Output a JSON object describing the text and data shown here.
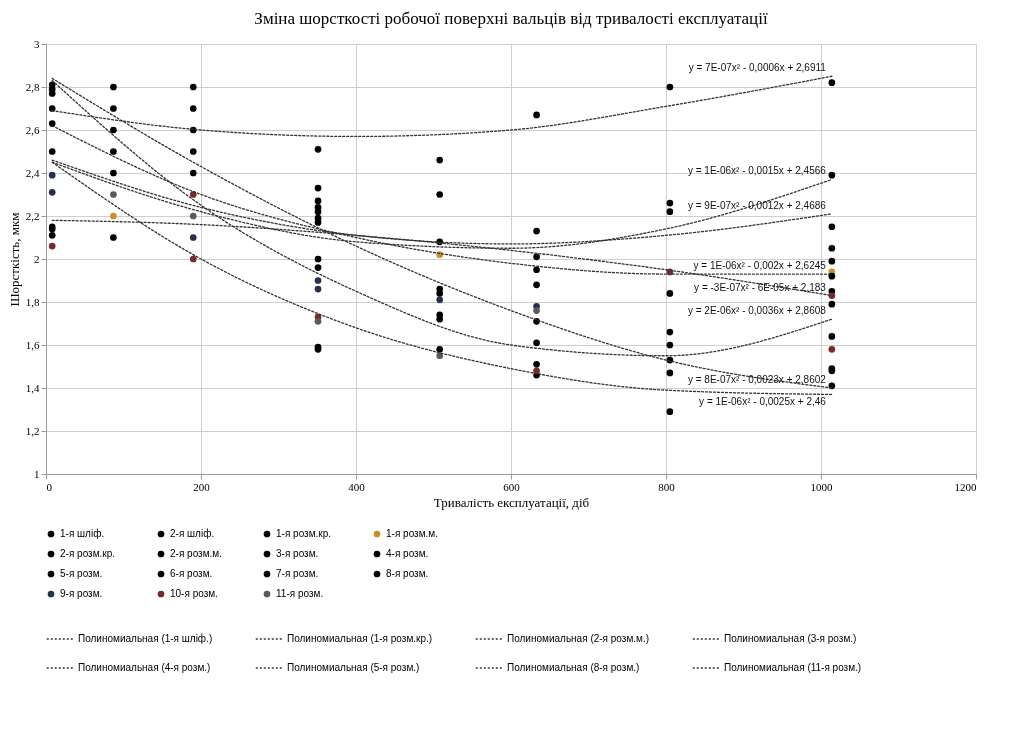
{
  "chart_data": {
    "type": "scatter",
    "title": "Зміна шорсткості робочої поверхні вальців від тривалості експлуатації",
    "xlabel": "Тривалість експлуатації, діб",
    "ylabel": "Шорсткість, мкм",
    "xlim": [
      0,
      1200
    ],
    "xticks": [
      0,
      200,
      400,
      600,
      800,
      1000,
      1200
    ],
    "ylim": [
      1,
      3
    ],
    "yticks": [
      1,
      {
        "value": 1.2,
        "label": "1,2"
      },
      {
        "value": 1.4,
        "label": "1,4"
      },
      {
        "value": 1.6,
        "label": "1,6"
      },
      {
        "value": 1.8,
        "label": "1,8"
      },
      2,
      {
        "value": 2.2,
        "label": "2,2"
      },
      {
        "value": 2.4,
        "label": "2,4"
      },
      {
        "value": 2.6,
        "label": "2,6"
      },
      {
        "value": 2.8,
        "label": "2,8"
      },
      3
    ],
    "grid": true,
    "legend": "bottom",
    "series": [
      {
        "name": "1-я шліф.",
        "marker": "circle",
        "color": "#000000",
        "x": [
          8,
          87,
          190,
          351,
          508,
          633,
          805,
          1014
        ],
        "values": [
          2.81,
          2.8,
          2.8,
          2.51,
          2.46,
          2.67,
          2.8,
          2.82
        ]
      },
      {
        "name": "2-я шліф.",
        "marker": "circle",
        "color": "#000000",
        "x": [
          8,
          87,
          190,
          351,
          508,
          633,
          805,
          1014
        ],
        "values": [
          2.79,
          2.7,
          2.7,
          2.33,
          2.3,
          2.13,
          2.26,
          2.39
        ]
      },
      {
        "name": "1-я розм.кр.",
        "marker": "circle",
        "color": "#000000",
        "x": [
          8,
          87,
          190,
          351,
          508,
          633,
          805,
          1014
        ],
        "values": [
          2.77,
          2.6,
          2.6,
          2.27,
          2.08,
          2.01,
          2.22,
          2.15
        ]
      },
      {
        "name": "1-я розм.м.",
        "marker": "circle",
        "color": "#c8902a",
        "x": [
          87,
          508,
          1014
        ],
        "values": [
          2.2,
          2.02,
          1.94
        ]
      },
      {
        "name": "2-я розм.кр.",
        "marker": "circle",
        "color": "#000000",
        "x": [
          8,
          87,
          190,
          351,
          508,
          633,
          805,
          1014
        ],
        "values": [
          2.7,
          2.5,
          2.5,
          2.24,
          1.86,
          1.95,
          1.84,
          2.05
        ]
      },
      {
        "name": "2-я розм.м.",
        "marker": "circle",
        "color": "#000000",
        "x": [
          8,
          87,
          190,
          351,
          508,
          633,
          805,
          1014
        ],
        "values": [
          2.63,
          2.4,
          2.4,
          2.22,
          1.84,
          1.88,
          1.66,
          1.99
        ]
      },
      {
        "name": "3-я розм.",
        "marker": "circle",
        "color": "#000000",
        "x": [
          8,
          351,
          633,
          805,
          1014
        ],
        "values": [
          2.5,
          2.19,
          1.71,
          1.6,
          1.92
        ]
      },
      {
        "name": "4-я розм.",
        "marker": "circle",
        "color": "#000000",
        "x": [
          8,
          87,
          351,
          633,
          805,
          1014
        ],
        "values": [
          2.15,
          2.1,
          2.17,
          1.61,
          1.53,
          1.85
        ]
      },
      {
        "name": "5-я розм.",
        "marker": "circle",
        "color": "#000000",
        "x": [
          8,
          351,
          508,
          633,
          805,
          1014
        ],
        "values": [
          2.14,
          2.0,
          1.74,
          1.51,
          1.47,
          1.79
        ]
      },
      {
        "name": "6-я розм.",
        "marker": "circle",
        "color": "#000000",
        "x": [
          8,
          351,
          508,
          633,
          805,
          1014
        ],
        "values": [
          2.11,
          1.96,
          1.72,
          1.46,
          1.29,
          1.64
        ]
      },
      {
        "name": "7-я розм.",
        "marker": "circle",
        "color": "#000000",
        "x": [
          351,
          508,
          1014
        ],
        "values": [
          1.59,
          1.58,
          1.49
        ]
      },
      {
        "name": "8-я розм.",
        "marker": "circle",
        "color": "#000000",
        "x": [
          351,
          1014,
          1014
        ],
        "values": [
          1.58,
          1.48,
          1.41
        ]
      },
      {
        "name": "9-я розм.",
        "marker": "circle",
        "color": "#26324d",
        "x": [
          8,
          8,
          190,
          351,
          351,
          508,
          633
        ],
        "values": [
          2.39,
          2.31,
          2.1,
          1.9,
          1.86,
          1.81,
          1.78
        ]
      },
      {
        "name": "10-я розм.",
        "marker": "circle",
        "color": "#7a2a2a",
        "x": [
          8,
          190,
          190,
          351,
          633,
          805,
          1014,
          1014
        ],
        "values": [
          2.06,
          2.3,
          2.0,
          1.73,
          1.48,
          1.94,
          1.58,
          1.83
        ]
      },
      {
        "name": "11-я розм.",
        "marker": "circle",
        "color": "#5a5a5a",
        "x": [
          87,
          190,
          351,
          508,
          633
        ],
        "values": [
          2.3,
          2.2,
          1.71,
          1.55,
          1.76
        ]
      },
      {
        "name": "Полиномиальная (1-я шліф.)",
        "type": "line",
        "line_style": "dotted",
        "color": "#333333",
        "x": [
          8,
          200,
          400,
          600,
          800,
          1014
        ],
        "values": [
          2.69,
          2.6,
          2.57,
          2.6,
          2.71,
          2.85
        ]
      },
      {
        "name": "Полиномиальная (1-я розм.кр.)",
        "type": "line",
        "line_style": "dotted",
        "color": "#333333",
        "x": [
          8,
          200,
          400,
          600,
          800,
          1014
        ],
        "values": [
          2.45,
          2.22,
          2.08,
          2.05,
          2.14,
          2.37
        ]
      },
      {
        "name": "Полиномиальная (2-я розм.м.)",
        "type": "line",
        "line_style": "dotted",
        "color": "#333333",
        "x": [
          8,
          200,
          400,
          600,
          800,
          1014
        ],
        "values": [
          2.46,
          2.24,
          2.11,
          2.07,
          2.11,
          2.21
        ]
      },
      {
        "name": "Полиномиальная (3-я розм.)",
        "type": "line",
        "line_style": "dotted",
        "color": "#333333",
        "x": [
          8,
          200,
          400,
          600,
          800,
          1014
        ],
        "values": [
          2.62,
          2.3,
          2.1,
          1.98,
          1.93,
          1.93
        ]
      },
      {
        "name": "Полиномиальная (4-я розм.)",
        "type": "line",
        "line_style": "dotted",
        "color": "#333333",
        "x": [
          8,
          200,
          400,
          600,
          800,
          1014
        ],
        "values": [
          2.18,
          2.16,
          2.11,
          2.04,
          1.95,
          1.83
        ]
      },
      {
        "name": "Полиномиальная (5-я розм.)",
        "type": "line",
        "line_style": "dotted",
        "color": "#333333",
        "x": [
          8,
          200,
          400,
          600,
          800,
          1014
        ],
        "values": [
          2.83,
          2.25,
          1.85,
          1.6,
          1.55,
          1.72
        ]
      },
      {
        "name": "Полиномиальная (8-я розм.)",
        "type": "line",
        "line_style": "dotted",
        "color": "#333333",
        "x": [
          8,
          200,
          400,
          600,
          800,
          1014
        ],
        "values": [
          2.84,
          2.43,
          2.06,
          1.76,
          1.53,
          1.4
        ]
      },
      {
        "name": "Полиномиальная (11-я розм.)",
        "type": "line",
        "line_style": "dotted",
        "color": "#333333",
        "x": [
          8,
          200,
          400,
          600,
          800,
          1014
        ],
        "values": [
          2.45,
          2.0,
          1.68,
          1.49,
          1.39,
          1.37
        ]
      }
    ],
    "annotations": [
      "y = 7E-07x² - 0,0006x + 2,6911",
      "y = 1E-06x² - 0,0015x + 2,4566",
      "y = 9E-07x² - 0,0012x + 2,4686",
      "y = 1E-06x² - 0,002x + 2,6245",
      "y = -3E-07x² - 6E-05x + 2,183",
      "y = 2E-06x² - 0,0036x + 2,8608",
      "y = 8E-07x² - 0,0023x + 2,8602",
      "y = 1E-06x² - 0,0025x + 2,46"
    ]
  }
}
